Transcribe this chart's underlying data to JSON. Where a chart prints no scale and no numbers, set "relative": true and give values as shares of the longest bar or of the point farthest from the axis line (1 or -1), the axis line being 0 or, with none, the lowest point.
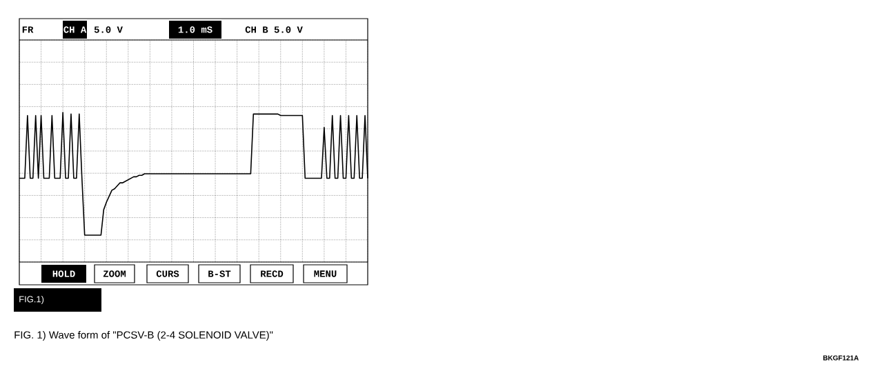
{
  "chart_data": {
    "type": "line",
    "relative": true,
    "grid": true,
    "color": "#000000",
    "marker": "none",
    "line_style": "solid",
    "title": "FIG. 1) Wave form of \"PCSV-B (2-4 SOLENOID VALVE)\"",
    "annotations": [
      "FR",
      "CH A",
      "5.0 V",
      "1.0 mS",
      "CH B 5.0 V",
      "HOLD",
      "ZOOM",
      "CURS",
      "B-ST",
      "RECD",
      "MENU",
      "FIG.1)",
      "BKGF121A"
    ],
    "categories": [
      null,
      null,
      null,
      null,
      null,
      null,
      null,
      null,
      null,
      null,
      null,
      null,
      null,
      null,
      null,
      null,
      null,
      null,
      null,
      null,
      null,
      null,
      null,
      null,
      null,
      null,
      null,
      null,
      null,
      null,
      null,
      null,
      null,
      null,
      null,
      null,
      null,
      null,
      null,
      null,
      null,
      null,
      null,
      null,
      null,
      null,
      null,
      null,
      null,
      null,
      null,
      null,
      null,
      null,
      null,
      null,
      null,
      null,
      null,
      null,
      null,
      null,
      null,
      null,
      null,
      null,
      null,
      null,
      null,
      null,
      null,
      null,
      null,
      null,
      null,
      null,
      null,
      null,
      null,
      null,
      null,
      null,
      null,
      null,
      null,
      null,
      null,
      null,
      null,
      null,
      null,
      null,
      null,
      null,
      null,
      null,
      null,
      null,
      null,
      null,
      null,
      null,
      null,
      null,
      null,
      null,
      null,
      null,
      null,
      null,
      null,
      null,
      null,
      null,
      null,
      null,
      null,
      null,
      null,
      null,
      null,
      null,
      null,
      null,
      null,
      null,
      null,
      null,
      null
    ],
    "values": [
      0.56,
      0.56,
      0.56,
      0.98,
      0.56,
      0.56,
      0.98,
      0.56,
      0.98,
      0.56,
      0.56,
      0.56,
      0.98,
      0.56,
      0.56,
      0.56,
      1.0,
      0.56,
      0.56,
      0.99,
      0.56,
      0.56,
      0.99,
      0.56,
      0.18,
      0.18,
      0.18,
      0.18,
      0.18,
      0.18,
      0.18,
      0.35,
      0.4,
      0.44,
      0.48,
      0.49,
      0.51,
      0.53,
      0.53,
      0.54,
      0.55,
      0.56,
      0.57,
      0.57,
      0.58,
      0.58,
      0.59,
      0.59,
      0.59,
      0.59,
      0.59,
      0.59,
      0.59,
      0.59,
      0.59,
      0.59,
      0.59,
      0.59,
      0.59,
      0.59,
      0.59,
      0.59,
      0.59,
      0.59,
      0.59,
      0.59,
      0.59,
      0.59,
      0.59,
      0.59,
      0.59,
      0.59,
      0.59,
      0.59,
      0.59,
      0.59,
      0.59,
      0.59,
      0.59,
      0.59,
      0.59,
      0.59,
      0.59,
      0.59,
      0.59,
      0.59,
      0.99,
      0.99,
      0.99,
      0.99,
      0.99,
      0.99,
      0.99,
      0.99,
      0.99,
      0.99,
      0.98,
      0.98,
      0.98,
      0.98,
      0.98,
      0.98,
      0.98,
      0.98,
      0.98,
      0.56,
      0.56,
      0.56,
      0.56,
      0.56,
      0.56,
      0.56,
      0.9,
      0.56,
      0.56,
      0.98,
      0.56,
      0.56,
      0.98,
      0.56,
      0.56,
      0.98,
      0.56,
      0.56,
      0.98,
      0.56,
      0.56,
      0.98,
      0.56
    ]
  }
}
